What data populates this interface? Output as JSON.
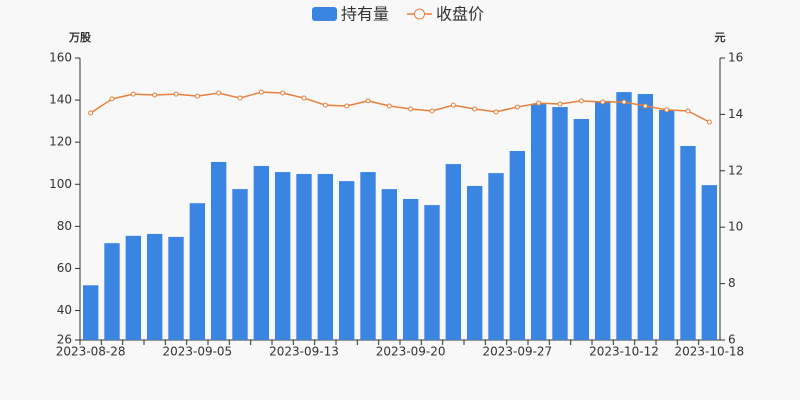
{
  "chart_data": {
    "type": "combo",
    "y_label": "万股",
    "y2_label": "元",
    "categories": [
      "2023-08-28",
      null,
      null,
      null,
      null,
      "2023-09-05",
      null,
      null,
      null,
      null,
      "2023-09-13",
      null,
      null,
      null,
      null,
      "2023-09-20",
      null,
      null,
      null,
      null,
      "2023-09-27",
      null,
      null,
      null,
      null,
      "2023-10-12",
      null,
      null,
      null,
      "2023-10-18"
    ],
    "series": [
      {
        "name": "持有量",
        "type": "bar",
        "color": "#3a84e2",
        "axis": "y",
        "values": [
          52,
          72,
          75.5,
          76.4,
          75,
          91,
          110.6,
          97.7,
          108.7,
          105.8,
          104.9,
          104.9,
          101.5,
          105.8,
          97.7,
          93,
          90.1,
          109.6,
          99.2,
          105.3,
          115.8,
          138.1,
          136.7,
          131,
          139.6,
          143.8,
          142.9,
          135.3,
          118.2,
          99.6
        ]
      },
      {
        "name": "收盘价",
        "type": "line",
        "color": "#e8803c",
        "axis": "y2",
        "values": [
          14.05,
          14.55,
          14.72,
          14.69,
          14.72,
          14.65,
          14.76,
          14.58,
          14.79,
          14.76,
          14.58,
          14.33,
          14.3,
          14.48,
          14.3,
          14.19,
          14.12,
          14.33,
          14.19,
          14.09,
          14.26,
          14.4,
          14.37,
          14.48,
          14.44,
          14.44,
          14.3,
          14.16,
          14.12,
          13.73
        ]
      }
    ],
    "ylim": [
      26,
      160
    ],
    "yticks": [
      26,
      40,
      60,
      80,
      100,
      120,
      140,
      160
    ],
    "y2lim": [
      6,
      16
    ],
    "y2ticks": [
      6,
      8,
      10,
      12,
      14,
      16
    ],
    "grid": false
  }
}
